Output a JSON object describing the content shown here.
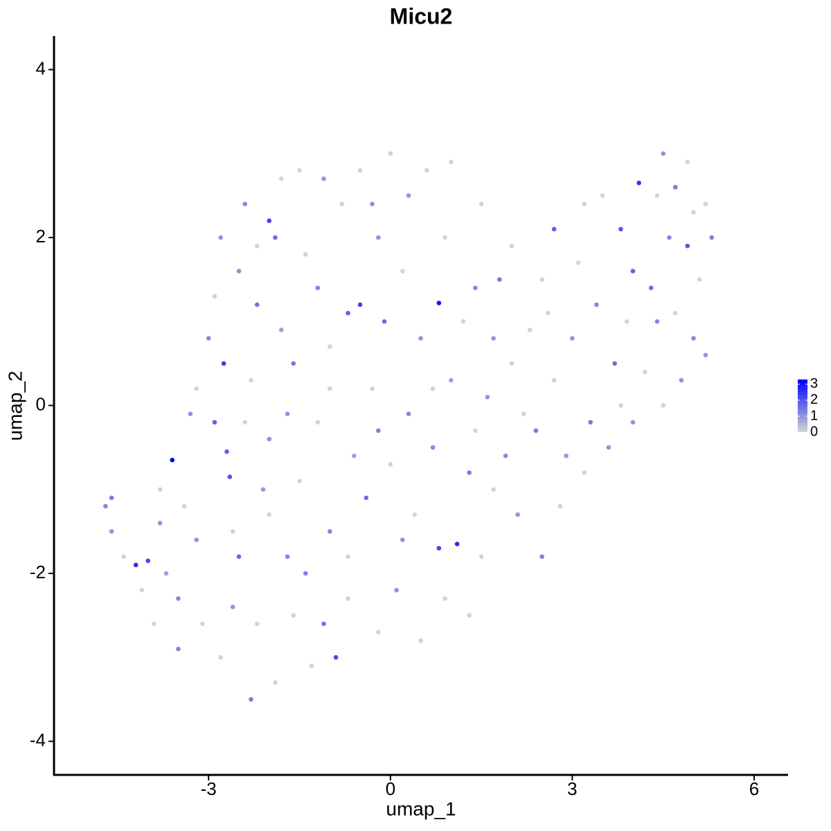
{
  "chart_data": {
    "type": "scatter",
    "title": "Micu2",
    "x_label": "umap_1",
    "y_label": "umap_2",
    "xlim": [
      -5.55,
      6.56
    ],
    "ylim": [
      -4.4,
      4.4
    ],
    "xticks": [
      -3,
      0,
      3,
      6
    ],
    "yticks": [
      -4,
      -2,
      0,
      2,
      4
    ],
    "grid": false,
    "low_color": "#d3d3d3",
    "high_color": "#0000ff",
    "colorbar": {
      "lim": [
        0,
        3.3
      ],
      "ticks": [
        0,
        1,
        2,
        3
      ]
    },
    "x": [
      -4.7,
      -4.6,
      -4.6,
      -4.4,
      -4.2,
      -4.0,
      -4.1,
      -3.9,
      -3.8,
      -3.6,
      -3.7,
      -3.5,
      -3.4,
      -3.3,
      -3.2,
      -3.0,
      -3.1,
      -2.9,
      -2.9,
      -2.8,
      -2.75,
      -2.7,
      -2.65,
      -2.6,
      -2.5,
      -2.4,
      -2.3,
      -2.3,
      -2.2,
      -2.2,
      -2.1,
      -2.0,
      -2.0,
      -1.9,
      -1.9,
      -1.8,
      -1.7,
      -1.6,
      -1.6,
      -1.5,
      -1.5,
      -1.4,
      -1.3,
      -1.2,
      -1.2,
      -1.1,
      -1.0,
      -1.0,
      -0.9,
      -0.8,
      -0.7,
      -0.7,
      -0.6,
      -0.5,
      -0.5,
      -0.4,
      -0.3,
      -0.2,
      -0.2,
      -0.1,
      0.0,
      0.0,
      0.1,
      0.2,
      0.3,
      0.3,
      0.4,
      0.5,
      0.5,
      0.6,
      0.7,
      0.8,
      0.8,
      0.9,
      1.0,
      1.0,
      1.1,
      1.2,
      1.3,
      1.4,
      1.5,
      1.5,
      1.6,
      1.7,
      1.8,
      1.9,
      2.0,
      2.0,
      2.1,
      2.3,
      2.4,
      2.5,
      2.5,
      2.7,
      2.7,
      2.8,
      3.0,
      3.1,
      3.2,
      3.2,
      3.3,
      3.4,
      3.5,
      3.6,
      3.7,
      3.8,
      3.9,
      4.0,
      4.0,
      4.1,
      4.2,
      4.3,
      4.4,
      4.5,
      4.5,
      4.6,
      4.7,
      4.7,
      4.8,
      4.9,
      5.0,
      5.0,
      5.1,
      5.2,
      5.3,
      5.2,
      -2.6,
      -3.2,
      -2.0,
      -1.4,
      -0.7,
      0.2,
      1.3,
      -3.5,
      -2.4,
      -1.7,
      -1.0,
      0.7,
      1.7,
      2.2,
      4.4,
      3.8,
      -2.2,
      -1.8,
      -0.3,
      0.9,
      -1.1,
      -2.8,
      -3.8,
      2.9,
      -0.2,
      -2.5,
      1.4,
      4.9,
      2.6
    ],
    "y": [
      -1.2,
      -1.5,
      -1.1,
      -1.8,
      -1.9,
      -1.85,
      -2.2,
      -2.6,
      -1.4,
      -0.65,
      -2.0,
      -2.9,
      -1.2,
      -0.1,
      0.2,
      0.8,
      -2.6,
      -0.2,
      1.3,
      2.0,
      0.5,
      -0.55,
      -0.85,
      -1.5,
      1.6,
      2.4,
      -3.5,
      0.3,
      -2.6,
      1.2,
      -1.0,
      2.2,
      -0.4,
      2.0,
      -3.3,
      0.9,
      -1.8,
      -2.5,
      0.5,
      2.8,
      -0.9,
      1.8,
      -3.1,
      1.4,
      -0.2,
      2.7,
      -1.5,
      0.7,
      -3.0,
      2.4,
      1.1,
      -2.3,
      -0.6,
      1.2,
      2.8,
      -1.1,
      0.2,
      -2.7,
      2.0,
      1.0,
      3.0,
      -0.7,
      -2.2,
      1.6,
      -0.1,
      2.5,
      -1.3,
      -2.8,
      0.8,
      2.8,
      -0.5,
      1.22,
      -1.7,
      -2.3,
      0.3,
      2.9,
      -1.65,
      1.0,
      -0.8,
      1.4,
      -1.8,
      2.4,
      0.1,
      -1.0,
      1.5,
      -0.6,
      0.5,
      1.9,
      -1.3,
      0.9,
      -0.3,
      1.5,
      -1.8,
      0.3,
      2.1,
      -1.2,
      0.8,
      1.7,
      -0.8,
      2.4,
      -0.2,
      1.2,
      2.5,
      -0.5,
      0.5,
      2.1,
      1.0,
      -0.2,
      1.6,
      2.65,
      0.4,
      1.4,
      2.5,
      3.0,
      0.0,
      2.0,
      1.1,
      2.6,
      0.3,
      1.9,
      2.3,
      0.8,
      1.5,
      0.6,
      2.0,
      2.4,
      -2.4,
      -1.6,
      -1.3,
      -2.0,
      -1.8,
      -1.6,
      -2.5,
      -2.3,
      -0.2,
      -0.1,
      0.2,
      0.2,
      0.8,
      -0.1,
      1.0,
      0.0,
      1.9,
      2.7,
      2.4,
      2.0,
      -2.6,
      -3.0,
      -1.0,
      -0.6,
      -0.3,
      -1.8,
      -0.3,
      2.9,
      1.1
    ],
    "values": [
      1.2,
      1.0,
      1.4,
      0,
      2.6,
      2.2,
      0,
      0,
      1.0,
      3.3,
      0.8,
      1.2,
      0,
      1.0,
      0,
      1.2,
      0,
      1.8,
      0,
      1.0,
      2.4,
      1.8,
      2.0,
      0,
      1.1,
      1.2,
      1.4,
      0,
      0,
      1.5,
      0.9,
      2.3,
      1.0,
      1.6,
      0,
      0.8,
      1.2,
      0,
      1.4,
      0,
      0,
      0,
      0,
      1.3,
      0,
      1.0,
      1.2,
      0,
      2.2,
      0,
      1.8,
      0,
      0.8,
      2.3,
      0,
      1.6,
      0,
      0,
      1.0,
      1.6,
      0,
      0,
      1.0,
      0,
      1.2,
      1.0,
      0,
      0,
      1.0,
      0,
      1.2,
      3.0,
      2.2,
      0,
      0.8,
      0,
      2.6,
      0,
      1.4,
      1.2,
      0,
      0,
      1.0,
      0,
      1.4,
      1.2,
      0,
      0,
      1.0,
      0,
      1.4,
      0,
      1.3,
      0,
      1.8,
      0,
      1.0,
      0,
      0,
      0,
      1.4,
      1.2,
      0,
      1.0,
      1.6,
      2.0,
      0,
      1.0,
      1.8,
      2.5,
      0,
      1.6,
      0,
      1.0,
      0,
      1.2,
      0,
      1.4,
      1.0,
      2.0,
      0,
      1.2,
      0,
      1.0,
      1.3,
      0,
      1.0,
      1.0,
      0,
      1.3,
      0,
      1.0,
      0,
      1.2,
      0,
      1.0,
      0,
      0,
      1.0,
      0,
      1.2,
      0,
      0,
      0,
      1.1,
      0,
      1.5,
      0,
      0,
      0.9,
      1.3,
      1.7,
      0,
      0,
      0
    ]
  }
}
